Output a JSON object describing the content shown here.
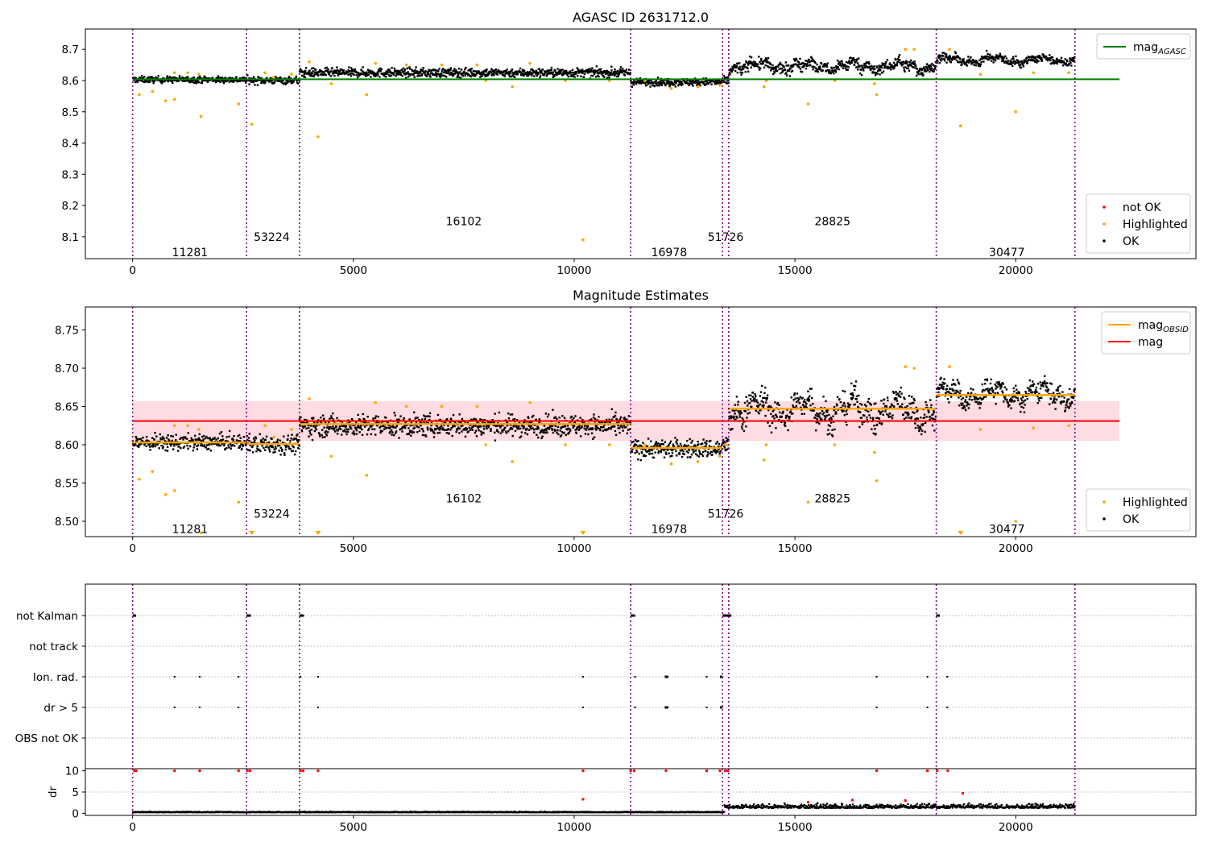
{
  "colors": {
    "ok": "#000000",
    "highlighted": "#ffa500",
    "not_ok": "#ff0000",
    "mag_agasc": "#008000",
    "mag_obsid": "#ffa500",
    "mag": "#ff0000",
    "mag_band": "#ffc0cb",
    "boundary": "#800080"
  },
  "chart_data": [
    {
      "type": "scatter",
      "title": "AGASC ID 2631712.0",
      "xlim": [
        -1070,
        24080
      ],
      "ylim": [
        8.03,
        8.765
      ],
      "xticks": [
        0,
        5000,
        10000,
        15000,
        20000
      ],
      "yticks": [
        8.1,
        8.2,
        8.3,
        8.4,
        8.5,
        8.6,
        8.7
      ],
      "ytick_labels": [
        "8.1",
        "8.2",
        "8.3",
        "8.4",
        "8.5",
        "8.6",
        "8.7"
      ],
      "obs_boundaries": [
        0,
        2580,
        3780,
        11280,
        13360,
        13500,
        18200,
        21340
      ],
      "observations": [
        {
          "label": "11281",
          "x": 1300,
          "y": 8.05
        },
        {
          "label": "53224",
          "x": 3150,
          "y": 8.1
        },
        {
          "label": "16102",
          "x": 7500,
          "y": 8.15
        },
        {
          "label": "16978",
          "x": 12150,
          "y": 8.05
        },
        {
          "label": "51726",
          "x": 13430,
          "y": 8.1
        },
        {
          "label": "28825",
          "x": 15850,
          "y": 8.15
        },
        {
          "label": "30477",
          "x": 19800,
          "y": 8.05
        }
      ],
      "series": [
        {
          "name": "mag_AGASC",
          "type": "hline",
          "y": 8.604,
          "x0": 0,
          "x1": 22350
        },
        {
          "name": "OK",
          "segments": [
            {
              "x0": 0,
              "x1": 2580,
              "mean": 8.603,
              "sd": 0.005
            },
            {
              "x0": 2580,
              "x1": 3780,
              "mean": 8.601,
              "sd": 0.006
            },
            {
              "x0": 3780,
              "x1": 11280,
              "mean": 8.625,
              "sd": 0.007
            },
            {
              "x0": 11280,
              "x1": 13360,
              "mean": 8.595,
              "sd": 0.006
            },
            {
              "x0": 13360,
              "x1": 13500,
              "mean": 8.6,
              "sd": 0.006
            },
            {
              "x0": 13500,
              "x1": 18200,
              "mean": 8.646,
              "sd": 0.017
            },
            {
              "x0": 18200,
              "x1": 21340,
              "mean": 8.666,
              "sd": 0.012
            }
          ]
        },
        {
          "name": "Highlighted",
          "points": [
            [
              150,
              8.555
            ],
            [
              450,
              8.565
            ],
            [
              750,
              8.535
            ],
            [
              950,
              8.625
            ],
            [
              950,
              8.54
            ],
            [
              1250,
              8.625
            ],
            [
              1500,
              8.62
            ],
            [
              1550,
              8.485
            ],
            [
              2400,
              8.525
            ],
            [
              2700,
              8.46
            ],
            [
              3000,
              8.625
            ],
            [
              3200,
              8.61
            ],
            [
              3600,
              8.62
            ],
            [
              4000,
              8.66
            ],
            [
              4200,
              8.42
            ],
            [
              4500,
              8.59
            ],
            [
              5300,
              8.555
            ],
            [
              5500,
              8.655
            ],
            [
              6200,
              8.65
            ],
            [
              7000,
              8.65
            ],
            [
              7800,
              8.65
            ],
            [
              8000,
              8.6
            ],
            [
              8600,
              8.58
            ],
            [
              9000,
              8.655
            ],
            [
              9800,
              8.6
            ],
            [
              10200,
              8.09
            ],
            [
              10800,
              8.6
            ],
            [
              11600,
              8.6
            ],
            [
              12200,
              8.575
            ],
            [
              12800,
              8.58
            ],
            [
              13300,
              8.585
            ],
            [
              14300,
              8.58
            ],
            [
              14350,
              8.6
            ],
            [
              15300,
              8.525
            ],
            [
              15900,
              8.6
            ],
            [
              16800,
              8.59
            ],
            [
              16850,
              8.555
            ],
            [
              17500,
              8.7
            ],
            [
              17700,
              8.7
            ],
            [
              18500,
              8.7
            ],
            [
              18750,
              8.455
            ],
            [
              19200,
              8.62
            ],
            [
              20000,
              8.5
            ],
            [
              20400,
              8.625
            ],
            [
              21200,
              8.625
            ]
          ]
        },
        {
          "name": "not OK",
          "points": []
        }
      ],
      "legends": [
        {
          "position": "top-right",
          "entries": [
            {
              "label": "mag_AGASC",
              "text": "mag",
              "sub": "AGASC",
              "color": "#008000",
              "kind": "line"
            }
          ]
        },
        {
          "position": "bottom-right",
          "entries": [
            {
              "label": "not OK",
              "color": "#ff0000",
              "kind": "dot"
            },
            {
              "label": "Highlighted",
              "color": "#ffa500",
              "kind": "dot"
            },
            {
              "label": "OK",
              "color": "#000000",
              "kind": "dot"
            }
          ]
        }
      ]
    },
    {
      "type": "scatter",
      "title": "Magnitude Estimates",
      "xlim": [
        -1070,
        24080
      ],
      "ylim": [
        8.48,
        8.78
      ],
      "xticks": [
        0,
        5000,
        10000,
        15000,
        20000
      ],
      "yticks": [
        8.5,
        8.55,
        8.6,
        8.65,
        8.7,
        8.75
      ],
      "ytick_labels": [
        "8.50",
        "8.55",
        "8.60",
        "8.65",
        "8.70",
        "8.75"
      ],
      "obs_boundaries": [
        0,
        2580,
        3780,
        11280,
        13360,
        13500,
        18200,
        21340
      ],
      "observations": [
        {
          "label": "11281",
          "x": 1300,
          "y": 8.49
        },
        {
          "label": "53224",
          "x": 3150,
          "y": 8.51
        },
        {
          "label": "16102",
          "x": 7500,
          "y": 8.53
        },
        {
          "label": "16978",
          "x": 12150,
          "y": 8.49
        },
        {
          "label": "51726",
          "x": 13430,
          "y": 8.51
        },
        {
          "label": "28825",
          "x": 15850,
          "y": 8.53
        },
        {
          "label": "30477",
          "x": 19800,
          "y": 8.49
        }
      ],
      "series": [
        {
          "name": "mag",
          "type": "hline",
          "y": 8.631,
          "x0": 0,
          "x1": 22350,
          "band": [
            8.605,
            8.657
          ]
        },
        {
          "name": "mag_OBSID",
          "type": "steps",
          "levels": [
            {
              "x0": 0,
              "x1": 2580,
              "y": 8.603
            },
            {
              "x0": 2580,
              "x1": 3780,
              "y": 8.601
            },
            {
              "x0": 3780,
              "x1": 11280,
              "y": 8.627
            },
            {
              "x0": 11280,
              "x1": 13360,
              "y": 8.596
            },
            {
              "x0": 13360,
              "x1": 13500,
              "y": 8.6
            },
            {
              "x0": 13500,
              "x1": 18200,
              "y": 8.647
            },
            {
              "x0": 18200,
              "x1": 21340,
              "y": 8.665
            }
          ]
        },
        {
          "name": "OK",
          "segments": [
            {
              "x0": 0,
              "x1": 2580,
              "mean": 8.603,
              "sd": 0.005
            },
            {
              "x0": 2580,
              "x1": 3780,
              "mean": 8.601,
              "sd": 0.006
            },
            {
              "x0": 3780,
              "x1": 11280,
              "mean": 8.625,
              "sd": 0.007
            },
            {
              "x0": 11280,
              "x1": 13360,
              "mean": 8.595,
              "sd": 0.006
            },
            {
              "x0": 13360,
              "x1": 13500,
              "mean": 8.6,
              "sd": 0.006
            },
            {
              "x0": 13500,
              "x1": 18200,
              "mean": 8.646,
              "sd": 0.017
            },
            {
              "x0": 18200,
              "x1": 21340,
              "mean": 8.666,
              "sd": 0.012
            }
          ]
        },
        {
          "name": "Highlighted",
          "points": [
            [
              150,
              8.555
            ],
            [
              450,
              8.565
            ],
            [
              750,
              8.535
            ],
            [
              950,
              8.625
            ],
            [
              950,
              8.54
            ],
            [
              1250,
              8.625
            ],
            [
              1500,
              8.62
            ],
            [
              1550,
              8.485
            ],
            [
              2400,
              8.525
            ],
            [
              3000,
              8.625
            ],
            [
              3200,
              8.61
            ],
            [
              3600,
              8.62
            ],
            [
              4000,
              8.66
            ],
            [
              4500,
              8.585
            ],
            [
              5300,
              8.56
            ],
            [
              5500,
              8.655
            ],
            [
              6200,
              8.65
            ],
            [
              7000,
              8.65
            ],
            [
              7800,
              8.65
            ],
            [
              8000,
              8.6
            ],
            [
              8600,
              8.578
            ],
            [
              9000,
              8.655
            ],
            [
              9800,
              8.6
            ],
            [
              10800,
              8.6
            ],
            [
              11600,
              8.6
            ],
            [
              12200,
              8.575
            ],
            [
              12800,
              8.578
            ],
            [
              13300,
              8.585
            ],
            [
              14300,
              8.58
            ],
            [
              14350,
              8.6
            ],
            [
              15300,
              8.525
            ],
            [
              15900,
              8.6
            ],
            [
              16800,
              8.59
            ],
            [
              16850,
              8.553
            ],
            [
              17500,
              8.702
            ],
            [
              17700,
              8.7
            ],
            [
              18500,
              8.702
            ],
            [
              19200,
              8.62
            ],
            [
              20000,
              8.5
            ],
            [
              20400,
              8.622
            ],
            [
              21200,
              8.625
            ]
          ]
        },
        {
          "name": "Highlighted below axis",
          "points": [
            [
              2700,
              8.48
            ],
            [
              4200,
              8.48
            ],
            [
              10200,
              8.48
            ],
            [
              18750,
              8.48
            ]
          ]
        }
      ],
      "legends": [
        {
          "position": "top-right",
          "entries": [
            {
              "label": "mag_OBSID",
              "text": "mag",
              "sub": "OBSID",
              "color": "#ffa500",
              "kind": "line"
            },
            {
              "label": "mag",
              "text": "mag",
              "sub": "",
              "color": "#ff0000",
              "kind": "line"
            }
          ]
        },
        {
          "position": "bottom-right",
          "entries": [
            {
              "label": "Highlighted",
              "color": "#ffa500",
              "kind": "dot"
            },
            {
              "label": "OK",
              "color": "#000000",
              "kind": "dot"
            }
          ]
        }
      ]
    },
    {
      "type": "scatter",
      "title": "",
      "xlim": [
        -1070,
        24080
      ],
      "categories": [
        "not Kalman",
        "not track",
        "Ion. rad.",
        "dr > 5",
        "OBS not OK"
      ],
      "obs_boundaries": [
        0,
        2580,
        3780,
        11280,
        13360,
        13500,
        18200,
        21340
      ],
      "flags": {
        "not Kalman": [
          [
            0,
            80
          ],
          [
            2580,
            2680
          ],
          [
            3780,
            3880
          ],
          [
            11280,
            11380
          ],
          [
            13360,
            13560
          ],
          [
            18200,
            18280
          ]
        ],
        "not track": [],
        "Ion. rad.": [
          [
            950,
            950
          ],
          [
            1520,
            1520
          ],
          [
            2400,
            2400
          ],
          [
            3800,
            3800
          ],
          [
            4200,
            4200
          ],
          [
            10200,
            10200
          ],
          [
            11380,
            11380
          ],
          [
            12050,
            12130
          ],
          [
            13000,
            13000
          ],
          [
            13300,
            13360
          ],
          [
            16850,
            16850
          ],
          [
            18000,
            18000
          ],
          [
            18450,
            18450
          ]
        ],
        "dr > 5": [
          [
            950,
            950
          ],
          [
            1520,
            1520
          ],
          [
            2400,
            2400
          ],
          [
            4200,
            4200
          ],
          [
            10200,
            10200
          ],
          [
            11380,
            11380
          ],
          [
            12050,
            12130
          ],
          [
            13000,
            13000
          ],
          [
            13300,
            13360
          ],
          [
            16850,
            16850
          ],
          [
            18000,
            18000
          ],
          [
            18450,
            18450
          ]
        ],
        "OBS not OK": []
      }
    },
    {
      "type": "scatter",
      "title": "",
      "ylabel": "dr",
      "xlim": [
        -1070,
        24080
      ],
      "ylim": [
        -0.5,
        10.5
      ],
      "xticks": [
        0,
        5000,
        10000,
        15000,
        20000
      ],
      "yticks": [
        0,
        5,
        10
      ],
      "ytick_labels": [
        "0",
        "5",
        "10"
      ],
      "obs_boundaries": [
        0,
        2580,
        3780,
        11280,
        13360,
        13500,
        18200,
        21340
      ],
      "series": [
        {
          "name": "OK",
          "segments": [
            {
              "x0": 0,
              "x1": 13400,
              "mean": 0.2,
              "sd": 0.08
            },
            {
              "x0": 13400,
              "x1": 21340,
              "mean": 1.2,
              "sd": 0.45
            }
          ]
        },
        {
          "name": "not OK",
          "points": [
            [
              40,
              10
            ],
            [
              80,
              10
            ],
            [
              950,
              10
            ],
            [
              1520,
              10
            ],
            [
              2400,
              10
            ],
            [
              2600,
              10
            ],
            [
              2660,
              10
            ],
            [
              3800,
              10
            ],
            [
              3860,
              10
            ],
            [
              4200,
              10
            ],
            [
              10200,
              10
            ],
            [
              11280,
              10
            ],
            [
              11360,
              10
            ],
            [
              12080,
              10
            ],
            [
              13000,
              10
            ],
            [
              13300,
              10
            ],
            [
              13420,
              10
            ],
            [
              13480,
              10
            ],
            [
              16850,
              10
            ],
            [
              18000,
              10
            ],
            [
              18220,
              10
            ],
            [
              18460,
              10
            ],
            [
              10200,
              3.3
            ],
            [
              15300,
              2.6
            ],
            [
              16300,
              3.1
            ],
            [
              17500,
              3.0
            ],
            [
              18800,
              4.7
            ]
          ]
        }
      ]
    }
  ]
}
